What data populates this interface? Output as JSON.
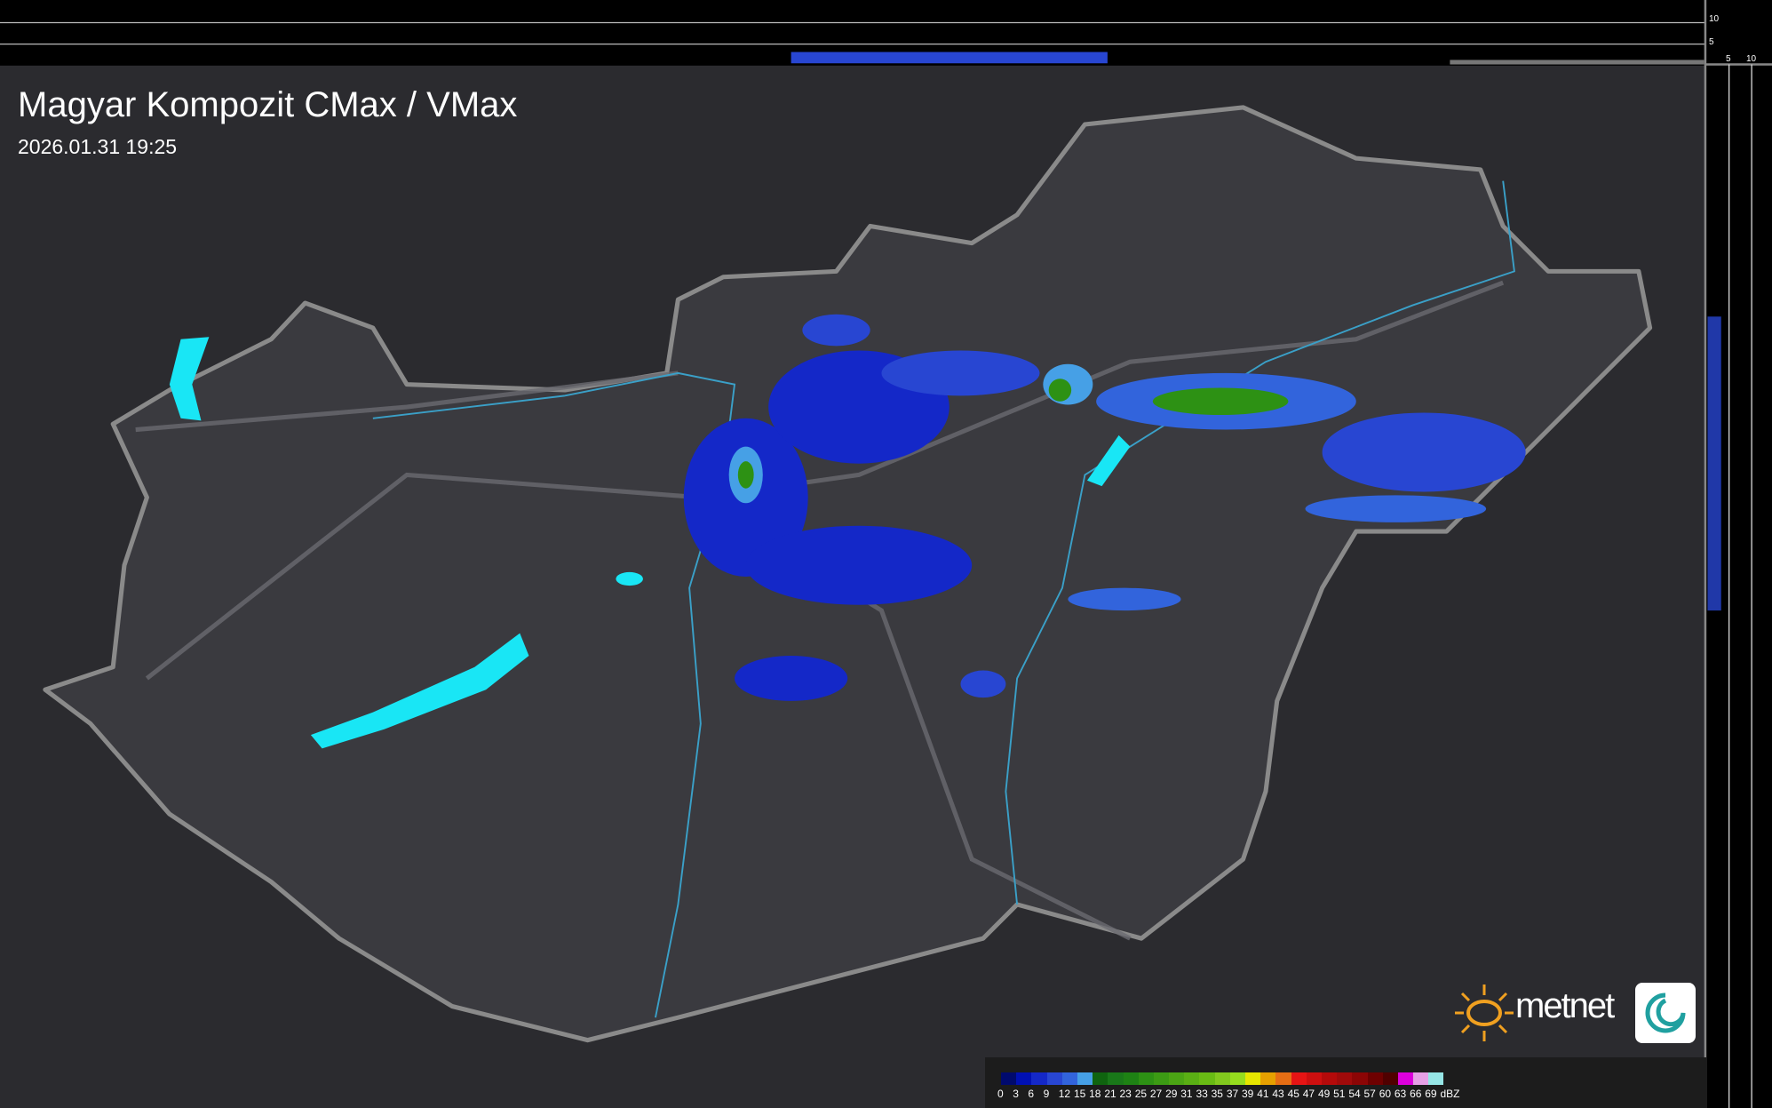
{
  "header": {
    "title": "Magyar Kompozit CMax / VMax",
    "datetime": "2026.01.31 19:25"
  },
  "side_profile": {
    "top_ticks": [
      "10",
      "5"
    ],
    "right_ticks": [
      "5",
      "10"
    ]
  },
  "logo": {
    "text": "metnet"
  },
  "legend": {
    "unit": "dBZ",
    "labels": [
      "0",
      "3",
      "6",
      "9",
      "12",
      "15",
      "18",
      "21",
      "23",
      "25",
      "27",
      "29",
      "31",
      "33",
      "35",
      "37",
      "39",
      "41",
      "43",
      "45",
      "47",
      "49",
      "51",
      "54",
      "57",
      "60",
      "63",
      "66",
      "69"
    ],
    "colors": [
      "#000a6e",
      "#0010b4",
      "#1428c8",
      "#2846d2",
      "#3264dc",
      "#46a0e6",
      "#0f640f",
      "#197819",
      "#1e8214",
      "#2d9114",
      "#3c9b14",
      "#4ba514",
      "#5aaf14",
      "#69bb14",
      "#82c81e",
      "#96dc1e",
      "#e6e600",
      "#e6a000",
      "#e66e14",
      "#e61414",
      "#cd0f0f",
      "#b40a0a",
      "#a00a0a",
      "#8c0505",
      "#6e0000",
      "#500000",
      "#dc00dc",
      "#e6a0e6",
      "#96e6e6"
    ]
  },
  "colors": {
    "background": "#2a2a2e",
    "country": "#3a3a3e",
    "border": "#8a8a8a",
    "river": "#3aa0c8",
    "lake": "#19e6f5"
  }
}
